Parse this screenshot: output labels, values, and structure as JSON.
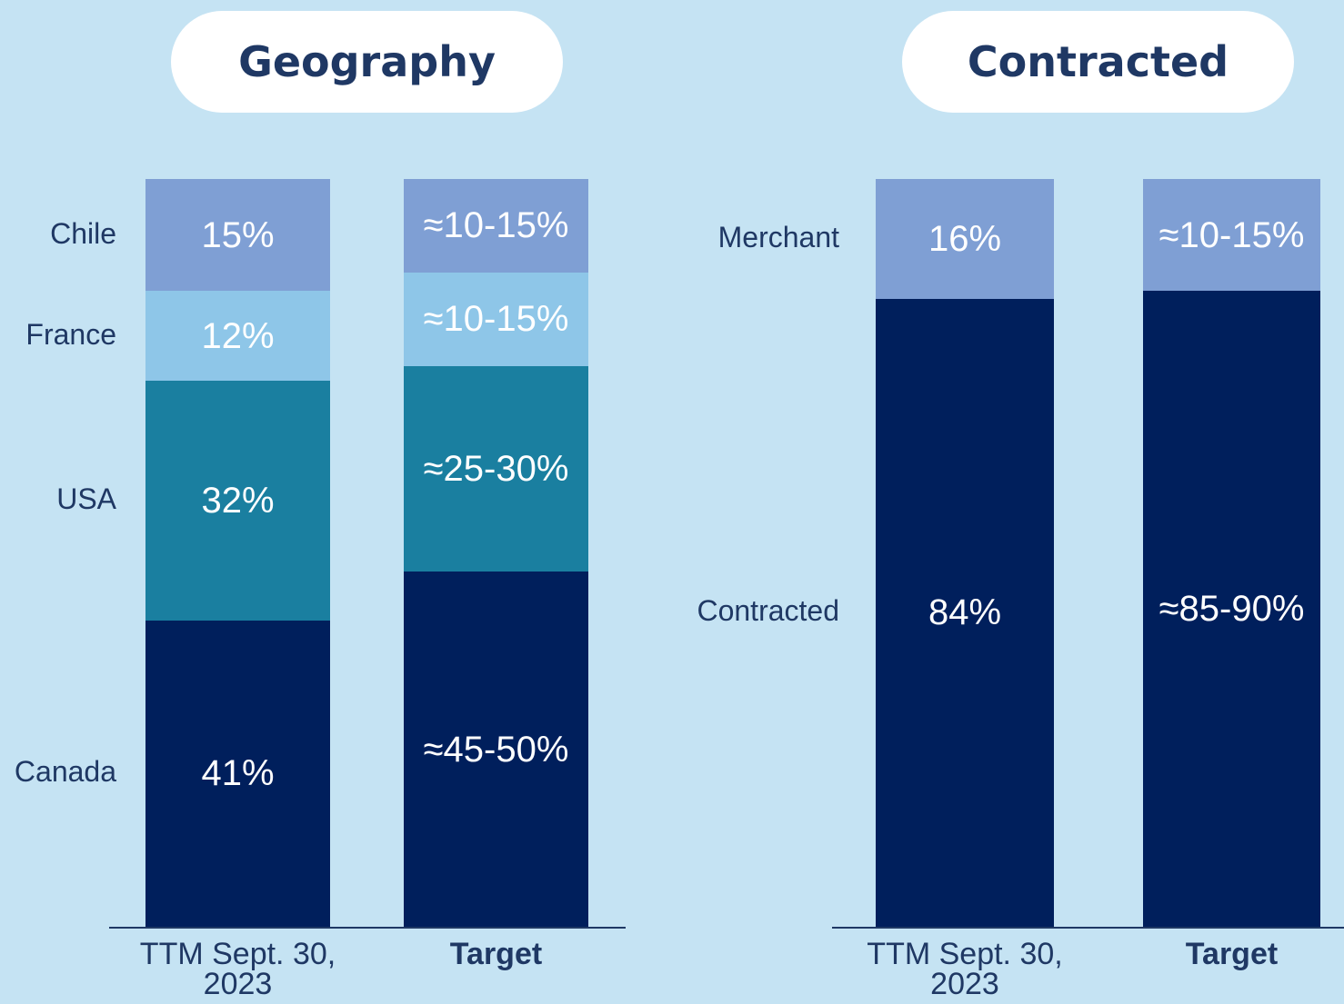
{
  "chart_data": [
    {
      "type": "stacked_bar",
      "title": "Geography",
      "categories": [
        "TTM Sept. 30, 2023",
        "Target"
      ],
      "ylim": [
        0,
        100
      ],
      "series": [
        {
          "name": "Canada",
          "color": "#001f5c",
          "values": [
            41,
            47.5
          ],
          "value_labels": [
            "41%",
            "≈45-50%"
          ]
        },
        {
          "name": "USA",
          "color": "#1a7fa0",
          "values": [
            32,
            27.5
          ],
          "value_labels": [
            "32%",
            "≈25-30%"
          ]
        },
        {
          "name": "France",
          "color": "#8ec6e8",
          "values": [
            12,
            12.5
          ],
          "value_labels": [
            "12%",
            "≈10-15%"
          ]
        },
        {
          "name": "Chile",
          "color": "#7f9fd4",
          "values": [
            15,
            12.5
          ],
          "value_labels": [
            "15%",
            "≈10-15%"
          ]
        }
      ]
    },
    {
      "type": "stacked_bar",
      "title": "Contracted",
      "categories": [
        "TTM Sept. 30, 2023",
        "Target"
      ],
      "ylim": [
        0,
        100
      ],
      "series": [
        {
          "name": "Contracted",
          "color": "#001f5c",
          "values": [
            84,
            85
          ],
          "value_labels": [
            "84%",
            "≈85-90%"
          ]
        },
        {
          "name": "Merchant",
          "color": "#7f9fd4",
          "values": [
            16,
            15
          ],
          "value_labels": [
            "16%",
            "≈10-15%"
          ]
        }
      ]
    }
  ]
}
